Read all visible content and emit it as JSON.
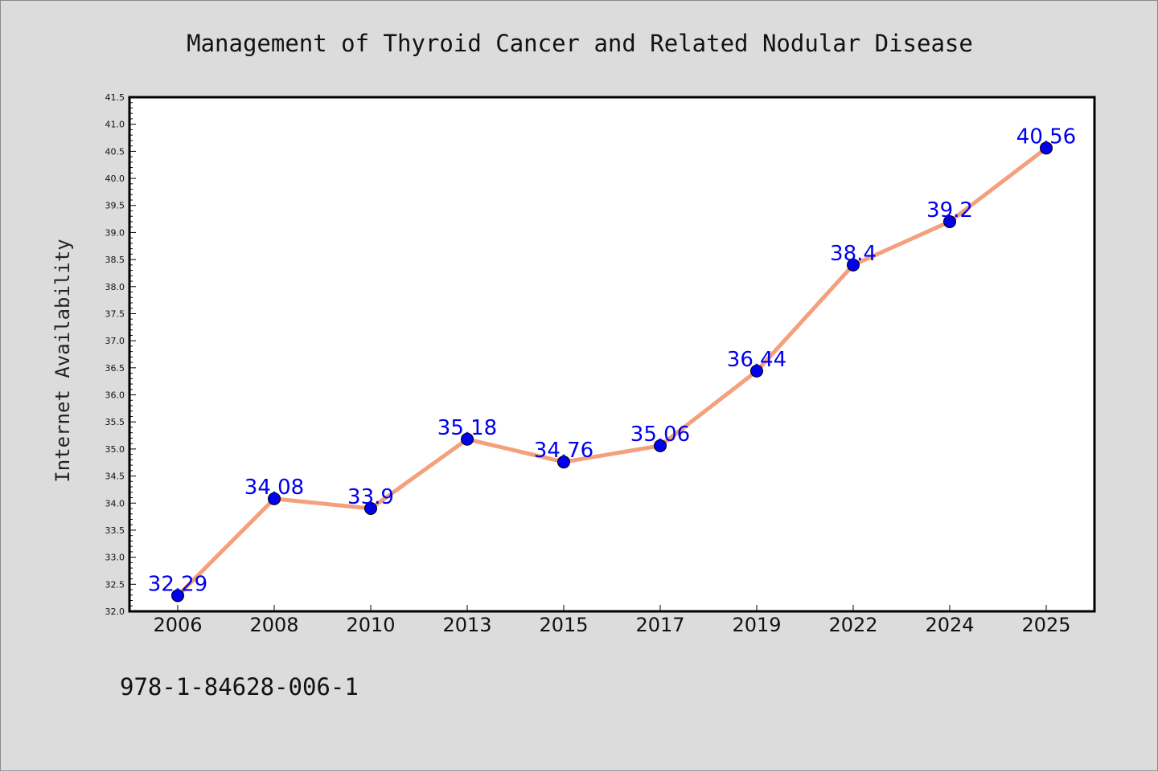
{
  "chart_data": {
    "type": "line",
    "title": "Management of Thyroid Cancer and Related Nodular Disease",
    "xlabel": "",
    "ylabel": "Internet Availability",
    "categories": [
      "2006",
      "2008",
      "2010",
      "2013",
      "2015",
      "2017",
      "2019",
      "2022",
      "2024",
      "2025"
    ],
    "values": [
      32.29,
      34.08,
      33.9,
      35.18,
      34.76,
      35.06,
      36.44,
      38.4,
      39.2,
      40.56
    ],
    "data_labels": [
      "32.29",
      "34.08",
      "33.9",
      "35.18",
      "34.76",
      "35.06",
      "36.44",
      "38.4",
      "39.2",
      "40.56"
    ],
    "ylim": [
      32.0,
      41.5
    ],
    "yticks": [
      "32.0",
      "32.5",
      "33.0",
      "33.5",
      "34.0",
      "34.5",
      "35.0",
      "35.5",
      "36.0",
      "36.5",
      "37.0",
      "37.5",
      "38.0",
      "38.5",
      "39.0",
      "39.5",
      "40.0",
      "40.5",
      "41.0",
      "41.5"
    ],
    "grid": false,
    "line_color": "#f4a07c",
    "marker_color": "#0000ee",
    "label_color": "#0000ee",
    "background": "#dcdcdc",
    "plot_background": "#ffffff"
  },
  "footer": {
    "isbn": "978-1-84628-006-1"
  }
}
